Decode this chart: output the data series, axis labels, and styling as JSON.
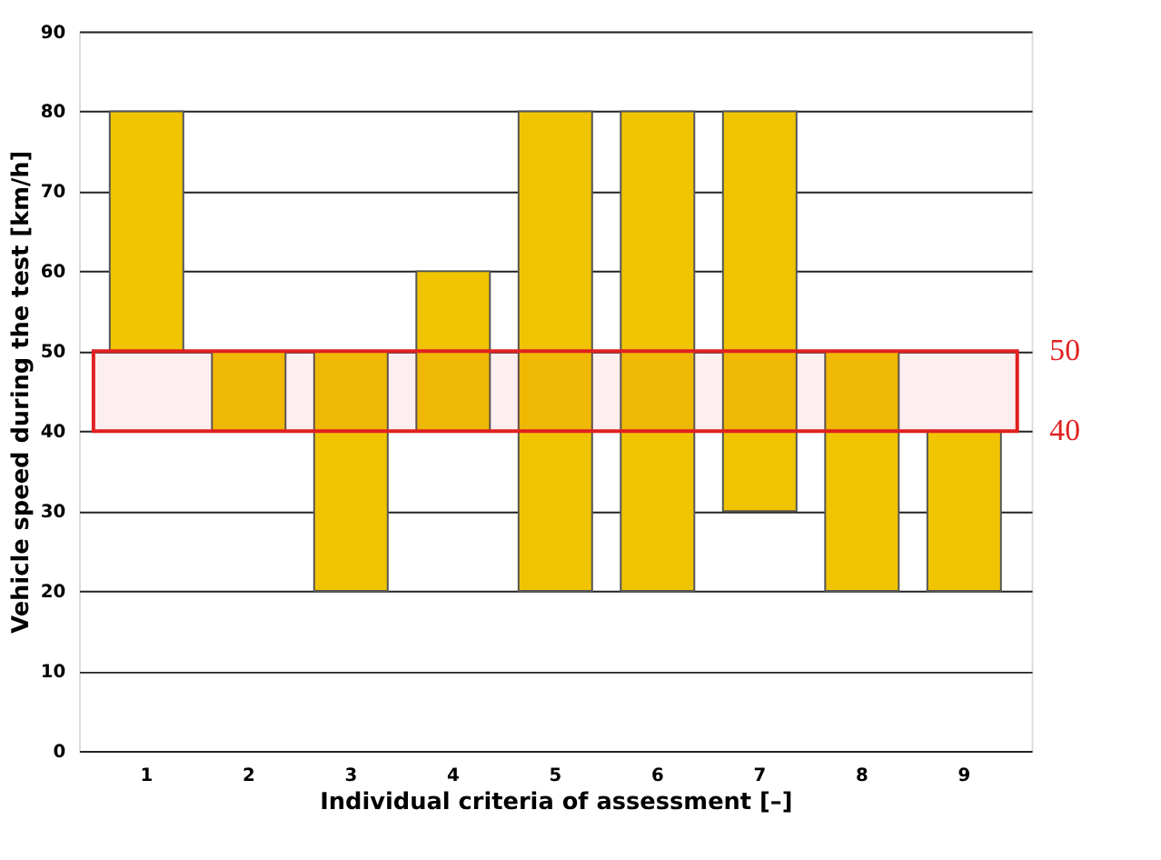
{
  "chart_data": {
    "type": "bar",
    "xlabel": "Individual criteria of assessment [–]",
    "ylabel": "Vehicle speed during the test [km/h]",
    "categories": [
      "1",
      "2",
      "3",
      "4",
      "5",
      "6",
      "7",
      "8",
      "9"
    ],
    "base": [
      50,
      40,
      20,
      40,
      20,
      20,
      30,
      20,
      20
    ],
    "values": [
      30,
      10,
      30,
      20,
      60,
      60,
      50,
      30,
      20
    ],
    "color": "#f0c400",
    "ylim": [
      0,
      90
    ],
    "yticks": [
      0,
      10,
      20,
      30,
      40,
      50,
      60,
      70,
      80,
      90
    ],
    "grid": "y",
    "legend": false,
    "bands": [
      {
        "axis": "y",
        "from": 40,
        "to": 50,
        "color": "#e02020"
      }
    ],
    "annotations": [
      "50",
      "40"
    ]
  }
}
